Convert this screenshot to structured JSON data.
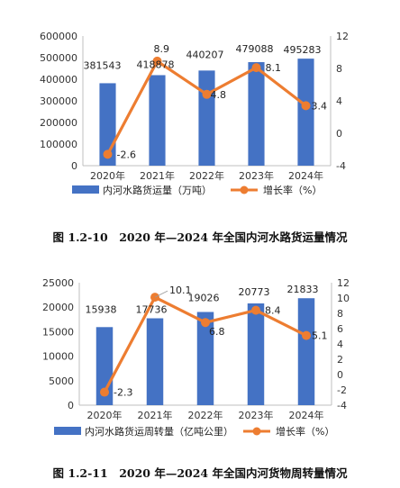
{
  "colors": {
    "bar": "#4472C4",
    "line": "#ED7D31",
    "axis": "#bfbfbf"
  },
  "chart_data": [
    {
      "type": "bar+line",
      "categories": [
        "2020年",
        "2021年",
        "2022年",
        "2023年",
        "2024年"
      ],
      "series": [
        {
          "name": "内河水路货运量（万吨）",
          "type": "bar",
          "axis": "left",
          "values": [
            381543,
            418878,
            440207,
            479088,
            495283
          ],
          "labels": [
            "381543",
            "418878",
            "440207",
            "479088",
            "495283"
          ]
        },
        {
          "name": "增长率（%）",
          "type": "line",
          "axis": "right",
          "values": [
            -2.6,
            8.9,
            4.8,
            8.1,
            3.4
          ],
          "labels": [
            "-2.6",
            "8.9",
            "4.8",
            "8.1",
            "3.4"
          ]
        }
      ],
      "y_left": {
        "min": 0,
        "max": 600000,
        "step": 100000,
        "ticks": [
          "0",
          "100000",
          "200000",
          "300000",
          "400000",
          "500000",
          "600000"
        ]
      },
      "y_right": {
        "min": -4,
        "max": 12,
        "step": 4,
        "ticks": [
          "-4",
          "0",
          "4",
          "8",
          "12"
        ]
      },
      "grid": false,
      "legend": "bottom"
    },
    {
      "type": "bar+line",
      "categories": [
        "2020年",
        "2021年",
        "2022年",
        "2023年",
        "2024年"
      ],
      "series": [
        {
          "name": "内河水路货运周转量（亿吨公里）",
          "type": "bar",
          "axis": "left",
          "values": [
            15938,
            17736,
            19026,
            20773,
            21833
          ],
          "labels": [
            "15938",
            "17736",
            "19026",
            "20773",
            "21833"
          ]
        },
        {
          "name": "增长率（%）",
          "type": "line",
          "axis": "right",
          "values": [
            -2.3,
            10.1,
            6.8,
            8.4,
            5.1
          ],
          "labels": [
            "-2.3",
            "10.1",
            "6.8",
            "8.4",
            "5.1"
          ]
        }
      ],
      "y_left": {
        "min": 0,
        "max": 25000,
        "step": 5000,
        "ticks": [
          "0",
          "5000",
          "10000",
          "15000",
          "20000",
          "25000"
        ]
      },
      "y_right": {
        "min": -4,
        "max": 12,
        "step": 2,
        "ticks": [
          "-4",
          "-2",
          "0",
          "2",
          "4",
          "6",
          "8",
          "10",
          "12"
        ]
      },
      "grid": false,
      "legend": "bottom"
    }
  ],
  "captions": [
    "图 1.2-10　2020 年—2024 年全国内河水路货运量情况",
    "图 1.2-11　2020 年—2024 年全国内河货物周转量情况"
  ]
}
